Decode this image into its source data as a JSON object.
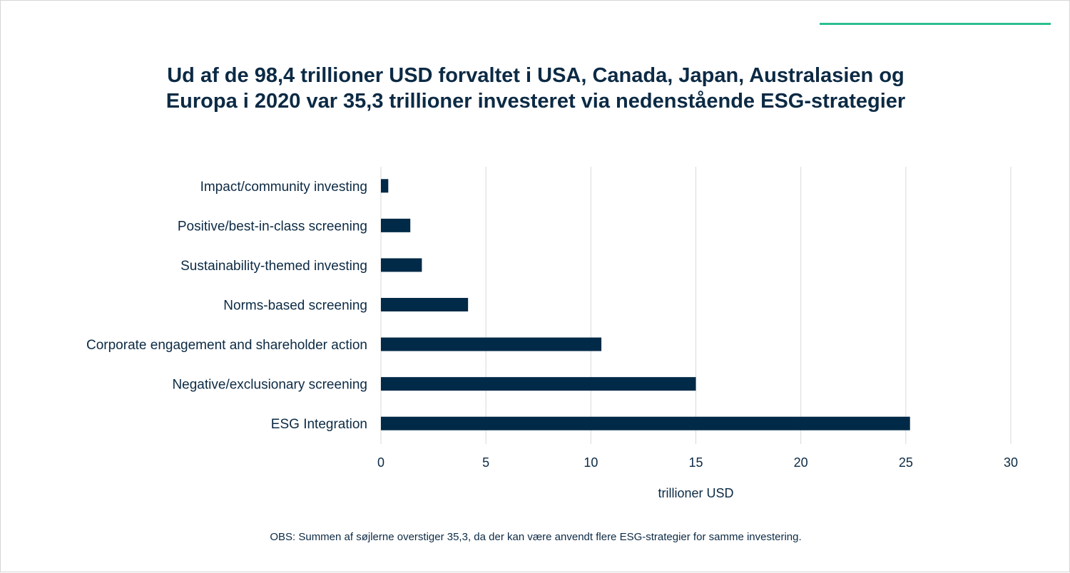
{
  "title": {
    "line1": "Ud af de 98,4 trillioner USD forvaltet i USA, Canada, Japan, Australasien og",
    "line2": "Europa i 2020 var 35,3 trillioner investeret via nedenstående ESG-strategier"
  },
  "note": "OBS: Summen af søjlerne overstiger 35,3, da der kan være anvendt flere ESG-strategier for samme investering.",
  "colors": {
    "bar": "#002a47",
    "accent": "#2bbf91",
    "text": "#0c2a44",
    "grid": "#d9d9d9"
  },
  "chart_data": {
    "type": "bar",
    "orientation": "horizontal",
    "categories": [
      "Impact/community investing",
      "Positive/best-in-class screening",
      "Sustainability-themed investing",
      "Norms-based screening",
      "Corporate engagement and shareholder action",
      "Negative/exclusionary screening",
      "ESG Integration"
    ],
    "values": [
      0.35,
      1.4,
      1.95,
      4.15,
      10.5,
      15.0,
      25.2
    ],
    "xlabel": "trillioner USD",
    "xlim": [
      0,
      30
    ],
    "xticks": [
      "0",
      "5",
      "10",
      "15",
      "20",
      "25",
      "30"
    ],
    "grid": "vertical",
    "legend": "none"
  }
}
